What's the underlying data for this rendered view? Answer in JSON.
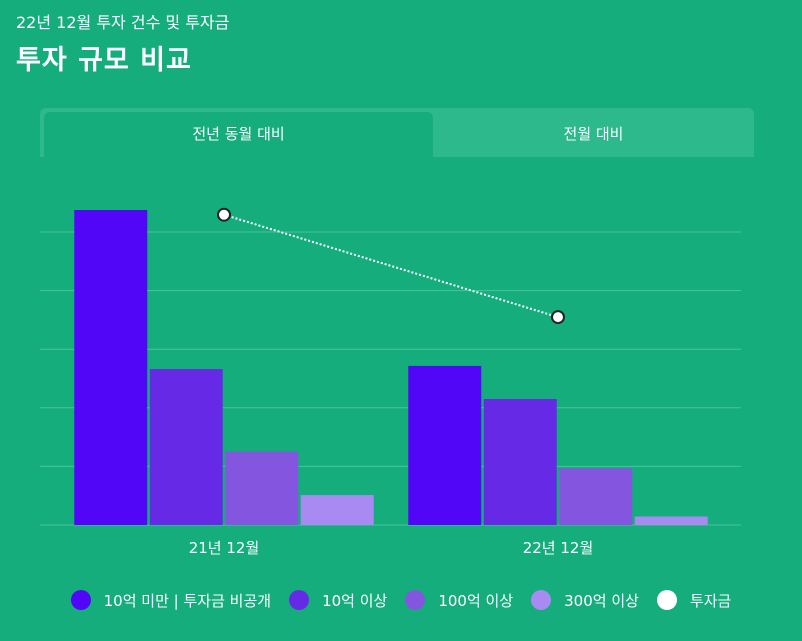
{
  "header": {
    "subtitle": "22년 12월 투자 건수 및 투자금",
    "title": "투자 규모 비교"
  },
  "tabs": [
    {
      "label": "전년 동월 대비",
      "active": true
    },
    {
      "label": "전월 대비",
      "active": false
    }
  ],
  "colors": {
    "background": "#15ad7c",
    "tab_inactive": "#2db98b",
    "gridline": "#4cc39c"
  },
  "chart_data": {
    "type": "bar",
    "categories": [
      "21년 12월",
      "22년 12월"
    ],
    "ylim": [
      0,
      100
    ],
    "grid": true,
    "legend_position": "bottom",
    "series": [
      {
        "name": "10억 미만 | 투자금 비공개",
        "kind": "bar",
        "color": "#5206f8",
        "values": [
          100,
          50.5
        ]
      },
      {
        "name": "10억 이상",
        "kind": "bar",
        "color": "#6629e6",
        "values": [
          49.5,
          40
        ]
      },
      {
        "name": "100억 이상",
        "kind": "bar",
        "color": "#8456e0",
        "values": [
          23.3,
          18
        ]
      },
      {
        "name": "300억 이상",
        "kind": "bar",
        "color": "#a88af2",
        "values": [
          9.5,
          2.7
        ]
      },
      {
        "name": "투자금",
        "kind": "line",
        "color": "#ffffff",
        "values": [
          98.5,
          66
        ]
      }
    ]
  }
}
